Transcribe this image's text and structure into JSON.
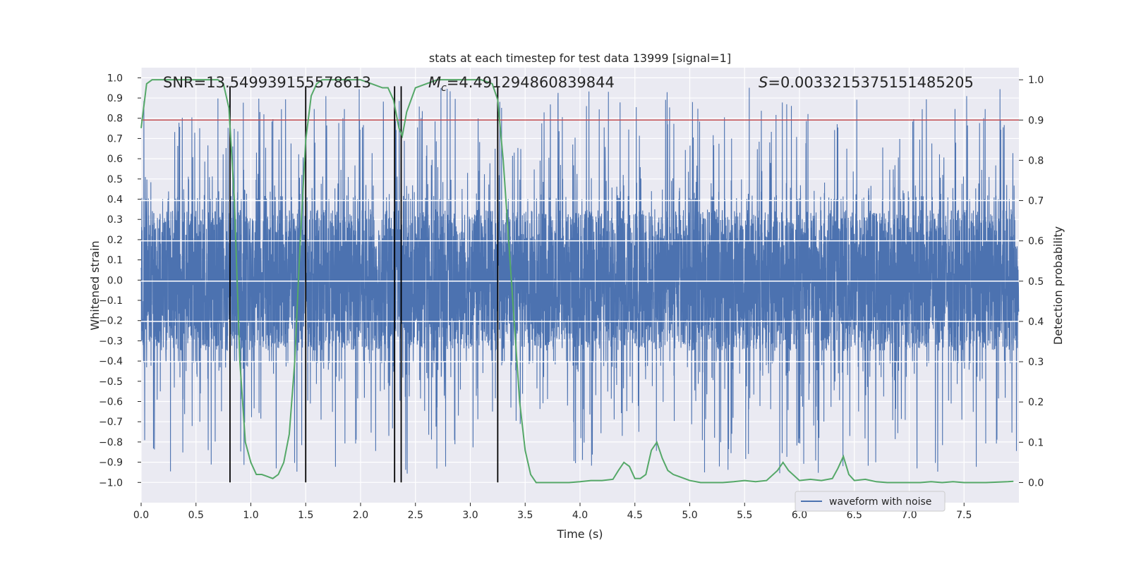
{
  "chart_data": {
    "type": "line",
    "title": "stats at each timestep for test data 13999 [signal=1]",
    "xlabel": "Time (s)",
    "ylabel_left": "Whitened strain",
    "ylabel_right": "Detection probability",
    "xlim": [
      0.0,
      8.0
    ],
    "ylim_left": [
      -1.1,
      1.05
    ],
    "ylim_right": [
      -0.05,
      1.03
    ],
    "x_ticks": [
      0.0,
      0.5,
      1.0,
      1.5,
      2.0,
      2.5,
      3.0,
      3.5,
      4.0,
      4.5,
      5.0,
      5.5,
      6.0,
      6.5,
      7.0,
      7.5
    ],
    "x_tick_labels": [
      "0.0",
      "0.5",
      "1.0",
      "1.5",
      "2.0",
      "2.5",
      "3.0",
      "3.5",
      "4.0",
      "4.5",
      "5.0",
      "5.5",
      "6.0",
      "6.5",
      "7.0",
      "7.5"
    ],
    "y_left_ticks": [
      1.0,
      0.9,
      0.8,
      0.7,
      0.6,
      0.5,
      0.4,
      0.3,
      0.2,
      0.1,
      0.0,
      -0.1,
      -0.2,
      -0.3,
      -0.4,
      -0.5,
      -0.6,
      -0.7,
      -0.8,
      -0.9,
      -1.0
    ],
    "y_left_tick_labels": [
      "1.0",
      "0.9",
      "0.8",
      "0.7",
      "0.6",
      "0.5",
      "0.4",
      "0.3",
      "0.2",
      "0.1",
      "0.0",
      "−0.1",
      "−0.2",
      "−0.3",
      "−0.4",
      "−0.5",
      "−0.6",
      "−0.7",
      "−0.8",
      "−0.9",
      "−1.0"
    ],
    "y_right_ticks": [
      0.0,
      0.1,
      0.2,
      0.3,
      0.4,
      0.5,
      0.6,
      0.7,
      0.8,
      0.9,
      1.0
    ],
    "y_right_tick_labels": [
      "0.0",
      "0.1",
      "0.2",
      "0.3",
      "0.4",
      "0.5",
      "0.6",
      "0.7",
      "0.8",
      "0.9",
      "1.0"
    ],
    "annotations": {
      "snr": "SNR=13.549939155578613",
      "mc_symbol": "M",
      "mc_sub": "c",
      "mc_value": "=4.491294860839844",
      "s_symbol": "S",
      "s_value": "=0.003321537515148520​5"
    },
    "threshold_right": 0.9,
    "vertical_lines_x": [
      0.81,
      1.5,
      2.31,
      2.37,
      3.25
    ],
    "vertical_lines_range_left": [
      -1.0,
      1.0
    ],
    "legend": {
      "label": "waveform with noise",
      "position": "lower-right"
    },
    "waveform": {
      "name": "waveform with noise",
      "sample_rate": 800,
      "band_amplitude": 0.35,
      "spike_amplitude_range": [
        0.4,
        0.97
      ]
    },
    "series": [
      {
        "name": "detection probability",
        "axis": "right",
        "x": [
          0.0,
          0.05,
          0.1,
          0.2,
          0.3,
          0.4,
          0.5,
          0.6,
          0.7,
          0.75,
          0.8,
          0.85,
          0.9,
          0.95,
          1.0,
          1.05,
          1.1,
          1.15,
          1.2,
          1.25,
          1.3,
          1.35,
          1.4,
          1.45,
          1.5,
          1.55,
          1.6,
          1.65,
          1.7,
          1.8,
          1.9,
          2.0,
          2.1,
          2.2,
          2.25,
          2.3,
          2.35,
          2.38,
          2.42,
          2.5,
          2.6,
          2.7,
          2.8,
          2.9,
          3.0,
          3.1,
          3.2,
          3.25,
          3.3,
          3.35,
          3.4,
          3.45,
          3.5,
          3.55,
          3.6,
          3.7,
          3.8,
          3.9,
          4.0,
          4.1,
          4.2,
          4.3,
          4.35,
          4.4,
          4.45,
          4.5,
          4.55,
          4.6,
          4.65,
          4.7,
          4.75,
          4.8,
          4.85,
          4.9,
          4.95,
          5.0,
          5.1,
          5.2,
          5.3,
          5.4,
          5.5,
          5.6,
          5.7,
          5.8,
          5.85,
          5.9,
          6.0,
          6.1,
          6.2,
          6.3,
          6.35,
          6.4,
          6.45,
          6.5,
          6.6,
          6.7,
          6.8,
          6.9,
          7.0,
          7.1,
          7.2,
          7.3,
          7.4,
          7.5,
          7.6,
          7.7,
          7.8,
          7.9,
          7.95
        ],
        "y": [
          0.88,
          0.99,
          1.0,
          1.0,
          1.0,
          1.0,
          1.0,
          1.0,
          1.0,
          0.99,
          0.93,
          0.7,
          0.3,
          0.1,
          0.05,
          0.02,
          0.02,
          0.015,
          0.01,
          0.02,
          0.05,
          0.12,
          0.3,
          0.6,
          0.85,
          0.96,
          0.99,
          1.0,
          1.0,
          1.0,
          1.0,
          1.0,
          0.99,
          0.98,
          0.98,
          0.95,
          0.88,
          0.86,
          0.92,
          0.98,
          0.99,
          1.0,
          1.0,
          1.0,
          1.0,
          1.0,
          0.99,
          0.95,
          0.8,
          0.6,
          0.4,
          0.2,
          0.08,
          0.02,
          0.0,
          0.0,
          0.0,
          0.0,
          0.002,
          0.005,
          0.005,
          0.008,
          0.03,
          0.05,
          0.04,
          0.01,
          0.01,
          0.02,
          0.08,
          0.1,
          0.06,
          0.03,
          0.02,
          0.015,
          0.01,
          0.005,
          0.0,
          0.0,
          0.0,
          0.002,
          0.005,
          0.002,
          0.005,
          0.03,
          0.05,
          0.03,
          0.005,
          0.008,
          0.005,
          0.01,
          0.035,
          0.065,
          0.02,
          0.005,
          0.008,
          0.002,
          0.0,
          0.0,
          0.0,
          0.0,
          0.002,
          0.0,
          0.002,
          0.0,
          0.0,
          0.0,
          0.001,
          0.002,
          0.003
        ]
      }
    ]
  }
}
